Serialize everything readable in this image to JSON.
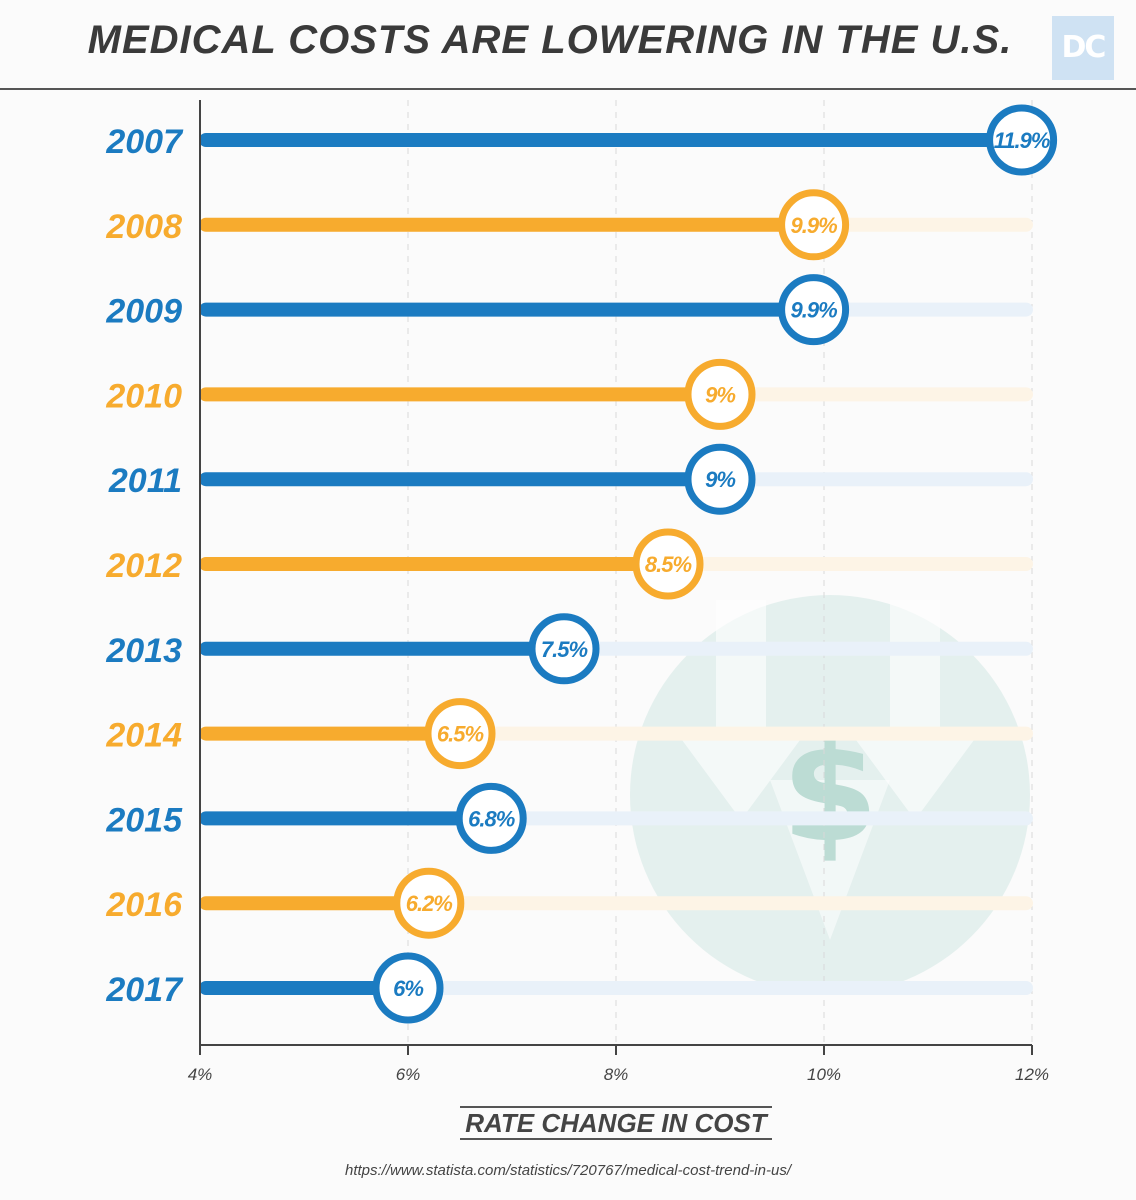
{
  "header": {
    "title": "MEDICAL COSTS ARE LOWERING IN THE U.S.",
    "logo_text": "DC"
  },
  "footer": {
    "source": "https://www.statista.com/statistics/720767/medical-cost-trend-in-us/"
  },
  "colors": {
    "blue": "#1b7bc1",
    "orange": "#f7ab2e",
    "blue_track": "#e9f1f9",
    "orange_track": "#fdf4e6",
    "watermark": "#d2e8e3"
  },
  "watermark_icon": "dollar-down-arrows-icon",
  "chart_data": {
    "type": "bar",
    "orientation": "horizontal",
    "categories": [
      "2007",
      "2008",
      "2009",
      "2010",
      "2011",
      "2012",
      "2013",
      "2014",
      "2015",
      "2016",
      "2017"
    ],
    "values": [
      11.9,
      9.9,
      9.9,
      9,
      9,
      8.5,
      7.5,
      6.5,
      6.8,
      6.2,
      6
    ],
    "value_labels": [
      "11.9%",
      "9.9%",
      "9.9%",
      "9%",
      "9%",
      "8.5%",
      "7.5%",
      "6.5%",
      "6.8%",
      "6.2%",
      "6%"
    ],
    "xlim": [
      4,
      12
    ],
    "xticks": [
      4,
      6,
      8,
      10,
      12
    ],
    "xtick_labels": [
      "4%",
      "6%",
      "8%",
      "10%",
      "12%"
    ],
    "xlabel": "RATE CHANGE IN COST",
    "ylabel": "",
    "grid": "dashed vertical",
    "alternating_colors": [
      "blue",
      "orange"
    ]
  }
}
